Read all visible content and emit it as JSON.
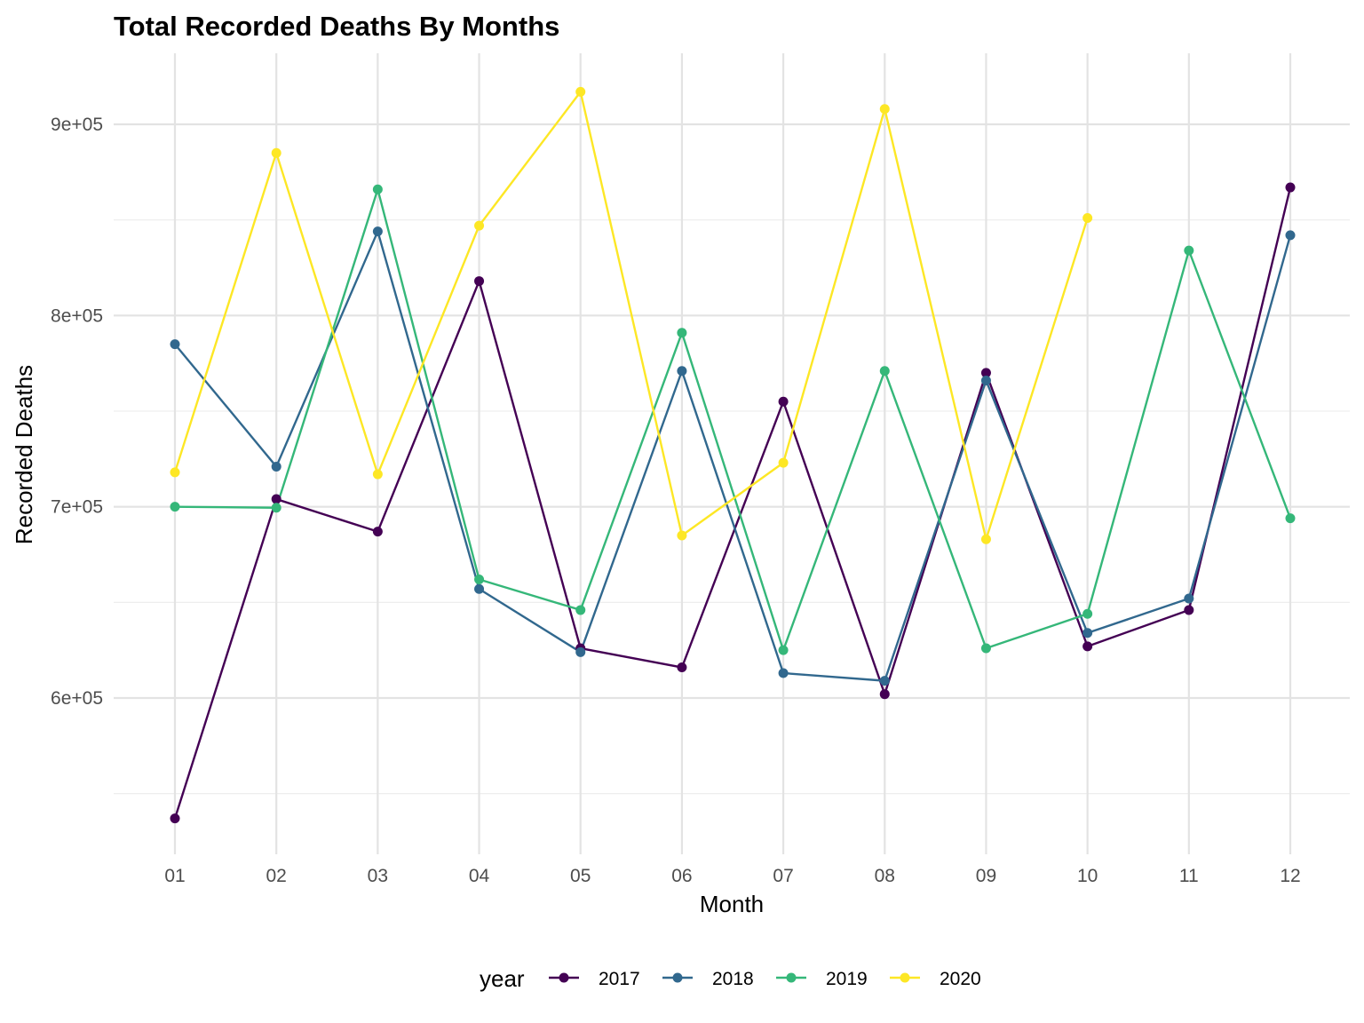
{
  "chart_data": {
    "type": "line",
    "title": "Total Recorded Deaths By Months",
    "xlabel": "Month",
    "ylabel": "Recorded Deaths",
    "categories": [
      "01",
      "02",
      "03",
      "04",
      "05",
      "06",
      "07",
      "08",
      "09",
      "10",
      "11",
      "12"
    ],
    "y_ticks": [
      {
        "value": 600000,
        "label": "6e+05"
      },
      {
        "value": 700000,
        "label": "7e+05"
      },
      {
        "value": 800000,
        "label": "8e+05"
      },
      {
        "value": 900000,
        "label": "9e+05"
      }
    ],
    "y_minor_ticks": [
      550000,
      650000,
      750000,
      850000
    ],
    "ylim": [
      532000,
      940000
    ],
    "grid": true,
    "legend": {
      "title": "year",
      "position": "bottom"
    },
    "series": [
      {
        "name": "2017",
        "color": "#440154",
        "values": [
          537000,
          704000,
          687000,
          818000,
          626000,
          616000,
          755000,
          602000,
          770000,
          627000,
          646000,
          867000
        ]
      },
      {
        "name": "2018",
        "color": "#31688e",
        "values": [
          785000,
          721000,
          844000,
          657000,
          624000,
          771000,
          613000,
          609000,
          766000,
          634000,
          652000,
          842000
        ]
      },
      {
        "name": "2019",
        "color": "#35b779",
        "values": [
          700000,
          699500,
          866000,
          662000,
          646000,
          791000,
          625000,
          771000,
          626000,
          644000,
          834000,
          694000
        ]
      },
      {
        "name": "2020",
        "color": "#fde725",
        "values": [
          718000,
          885000,
          717000,
          847000,
          917000,
          685000,
          723000,
          908000,
          683000,
          851000,
          null,
          null
        ]
      }
    ]
  }
}
